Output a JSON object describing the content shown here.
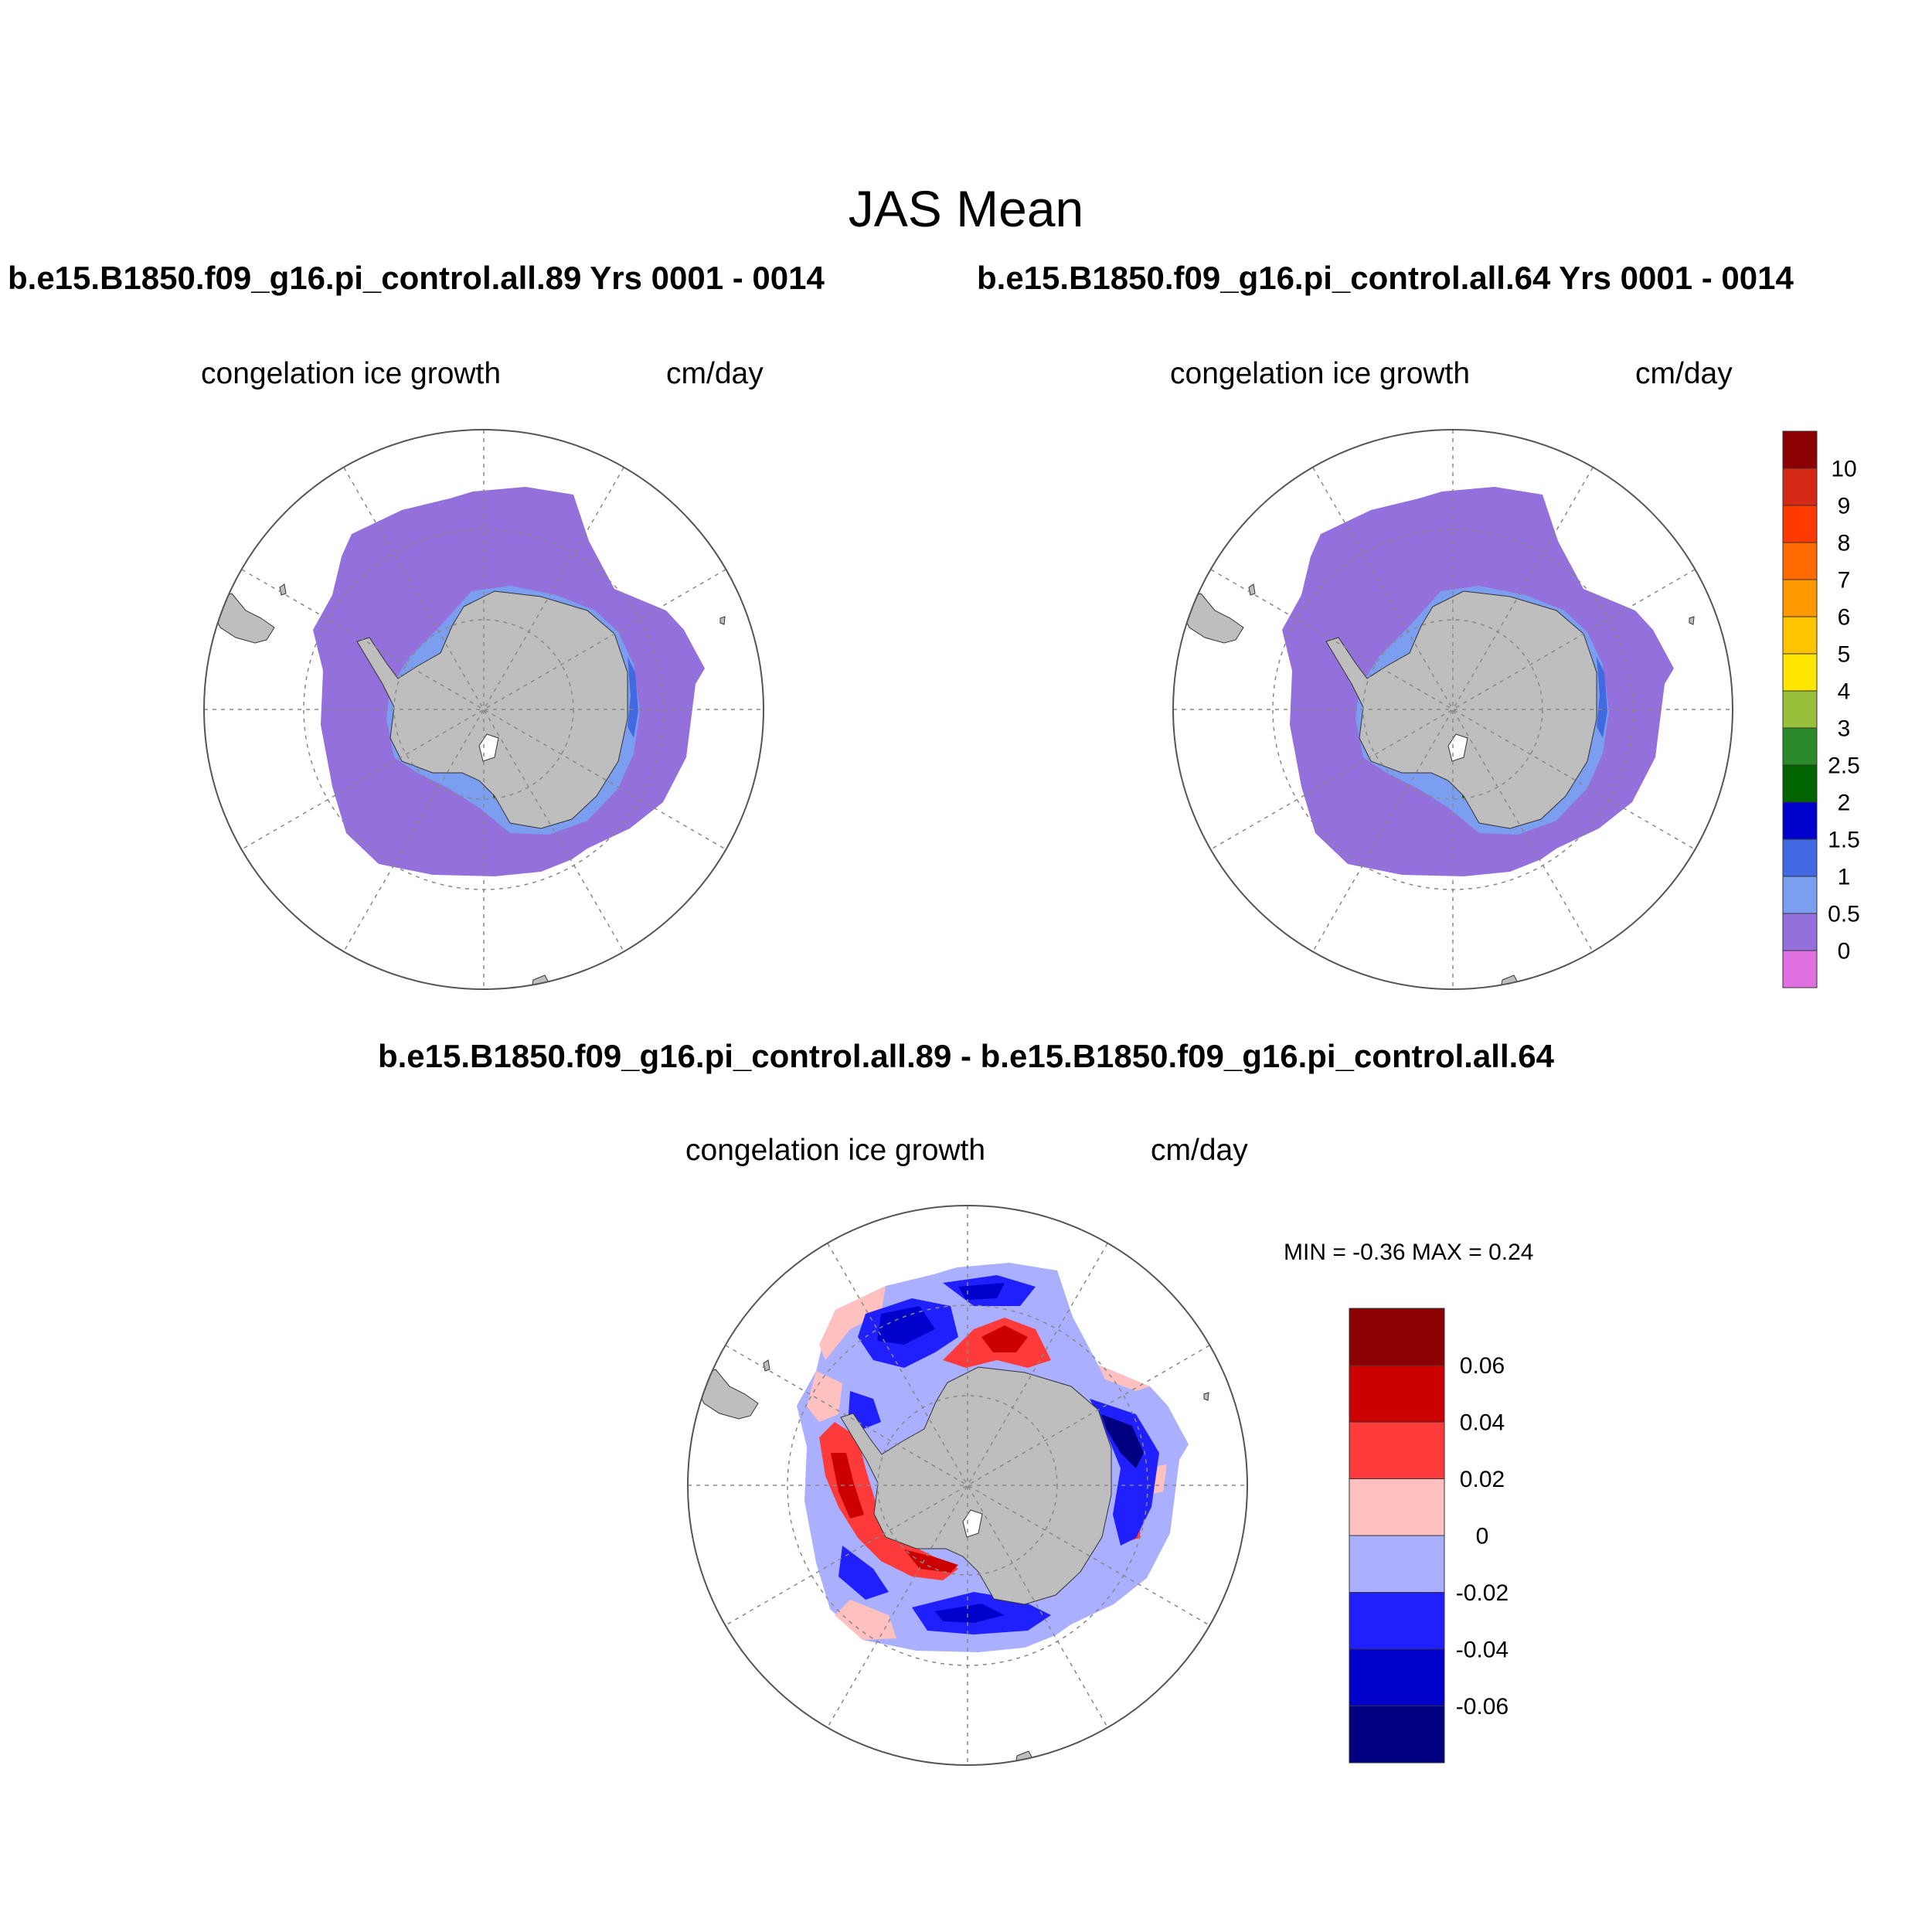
{
  "page_title": "JAS Mean",
  "panels": [
    {
      "case_title": "b.e15.B1850.f09_g16.pi_control.all.89  Yrs 0001 - 0014",
      "variable": "congelation ice growth",
      "units": "cm/day"
    },
    {
      "case_title": "b.e15.B1850.f09_g16.pi_control.all.64  Yrs 0001 - 0014",
      "variable": "congelation ice growth",
      "units": "cm/day"
    },
    {
      "case_title": "b.e15.B1850.f09_g16.pi_control.all.89 - b.e15.B1850.f09_g16.pi_control.all.64",
      "variable": "congelation ice growth",
      "units": "cm/day",
      "stats": "MIN =  -0.36 MAX =   0.24"
    }
  ],
  "colorbars": {
    "mean": {
      "labels": [
        "10",
        "9",
        "8",
        "7",
        "6",
        "5",
        "4",
        "3",
        "2.5",
        "2",
        "1.5",
        "1",
        "0.5",
        "0"
      ],
      "colors": [
        "#8b0000",
        "#d42a15",
        "#ff3a00",
        "#ff6a00",
        "#ff9900",
        "#ffc400",
        "#ffe600",
        "#99c03a",
        "#2a8a2a",
        "#006400",
        "#0000cd",
        "#4169e1",
        "#7b9ef0",
        "#9370db",
        "#e070e0"
      ]
    },
    "diff": {
      "labels": [
        "0.06",
        "0.04",
        "0.02",
        "0",
        "-0.02",
        "-0.04",
        "-0.06"
      ],
      "colors": [
        "#8b0000",
        "#cc0000",
        "#ff3a3a",
        "#ffc0c0",
        "#aab0ff",
        "#2020ff",
        "#0000cc",
        "#000080"
      ]
    }
  },
  "map_colors": {
    "land": "#bebebe",
    "ice_growth_low": "#9370db",
    "ice_growth_mid": "#7b9ef0",
    "diff_pos": "#ff3a3a",
    "diff_neg": "#2020ff"
  }
}
